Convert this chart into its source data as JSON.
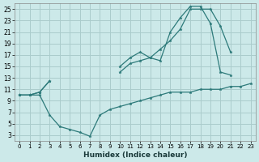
{
  "xlabel": "Humidex (Indice chaleur)",
  "bg_color": "#cce9e9",
  "grid_color": "#aacccc",
  "line_color": "#2d7a7a",
  "xlim": [
    -0.5,
    23.5
  ],
  "ylim": [
    2,
    26
  ],
  "yticks": [
    3,
    5,
    7,
    9,
    11,
    13,
    15,
    17,
    19,
    21,
    23,
    25
  ],
  "xticks": [
    0,
    1,
    2,
    3,
    4,
    5,
    6,
    7,
    8,
    9,
    10,
    11,
    12,
    13,
    14,
    15,
    16,
    17,
    18,
    19,
    20,
    21,
    22,
    23
  ],
  "series": [
    {
      "x": [
        0,
        1,
        2,
        3,
        4,
        5,
        6,
        7,
        8,
        9,
        10,
        11,
        12,
        13,
        14,
        15,
        16,
        17,
        18,
        19,
        20,
        21,
        22,
        23
      ],
      "y": [
        10,
        10,
        10,
        6.5,
        4.5,
        4.0,
        3.5,
        2.8,
        6.5,
        7.5,
        8.0,
        8.5,
        9.0,
        9.5,
        10.0,
        10.5,
        10.5,
        10.5,
        11.0,
        11.0,
        11.0,
        11.5,
        11.5,
        12.0
      ]
    },
    {
      "x": [
        0,
        1,
        2,
        3,
        10,
        11,
        12,
        13,
        14,
        15,
        16,
        17,
        18,
        19,
        20,
        21
      ],
      "y": [
        10,
        10,
        10.5,
        12.5,
        14.0,
        15.5,
        16.0,
        16.5,
        18.0,
        19.5,
        21.5,
        25.0,
        25.0,
        25.0,
        22.0,
        17.5
      ]
    },
    {
      "x": [
        0,
        1,
        2,
        3,
        10,
        11,
        12,
        13,
        14,
        15,
        16,
        17,
        18,
        19,
        20,
        21,
        22
      ],
      "y": [
        10,
        10,
        10.5,
        12.5,
        15.0,
        16.5,
        17.5,
        16.5,
        16.0,
        21.0,
        23.5,
        25.5,
        25.5,
        22.5,
        14.0,
        13.5,
        null
      ]
    }
  ]
}
